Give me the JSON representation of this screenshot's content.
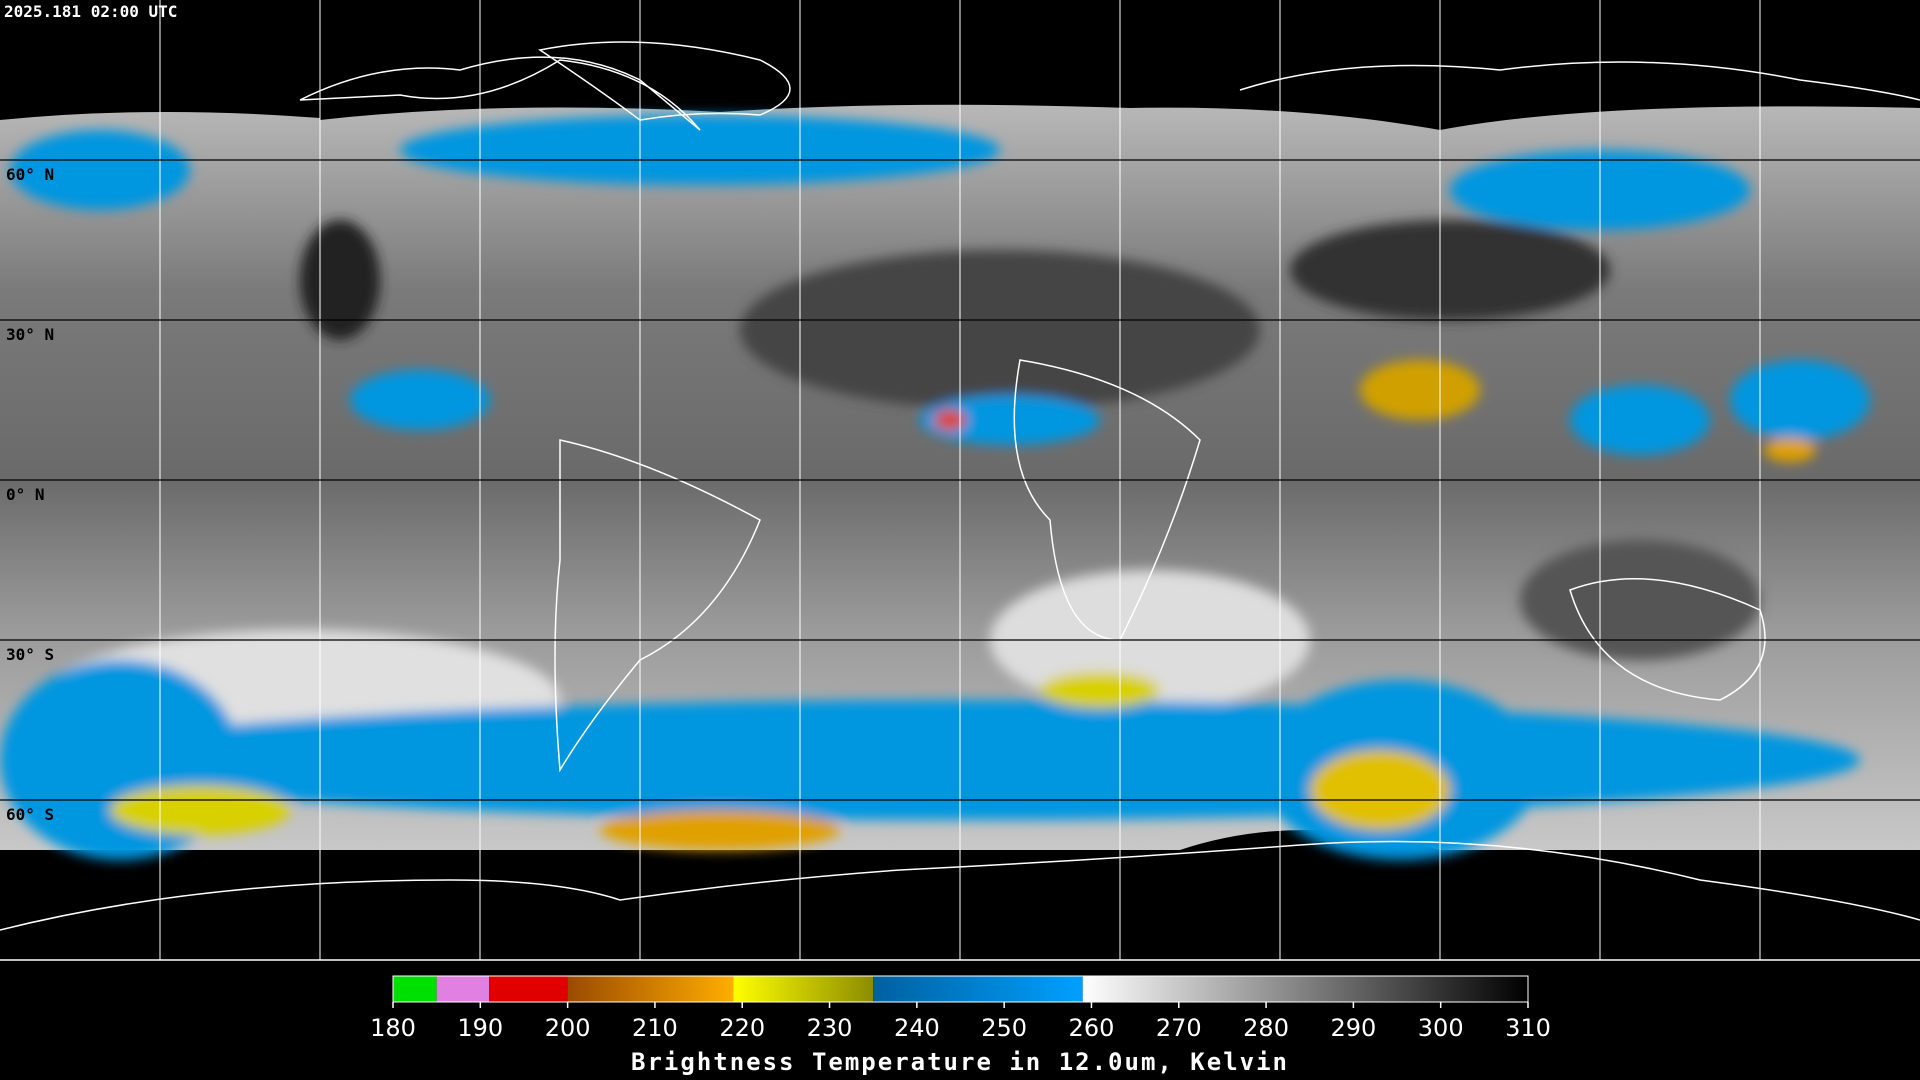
{
  "timestamp": "2025.181 02:00 UTC",
  "lat_labels": [
    "60° N",
    "30° N",
    "0° N",
    "30° S",
    "60° S"
  ],
  "colorbar": {
    "title": "Brightness Temperature in 12.0um, Kelvin",
    "range": [
      180,
      310
    ],
    "ticks": [
      180,
      190,
      200,
      210,
      220,
      230,
      240,
      250,
      260,
      270,
      280,
      290,
      300,
      310
    ],
    "segments": [
      {
        "from": 180,
        "to": 185,
        "colors": [
          "#00e000",
          "#00e000"
        ]
      },
      {
        "from": 185,
        "to": 191,
        "colors": [
          "#e080e0",
          "#e080e0"
        ]
      },
      {
        "from": 191,
        "to": 200,
        "colors": [
          "#e00000",
          "#e00000"
        ]
      },
      {
        "from": 200,
        "to": 219,
        "colors": [
          "#9a4a00",
          "#ffae00"
        ]
      },
      {
        "from": 219,
        "to": 235,
        "colors": [
          "#ffff00",
          "#8c8c00"
        ]
      },
      {
        "from": 235,
        "to": 259,
        "colors": [
          "#0060a0",
          "#00a0ff"
        ]
      },
      {
        "from": 259,
        "to": 310,
        "colors": [
          "#ffffff",
          "#000000"
        ]
      }
    ]
  }
}
